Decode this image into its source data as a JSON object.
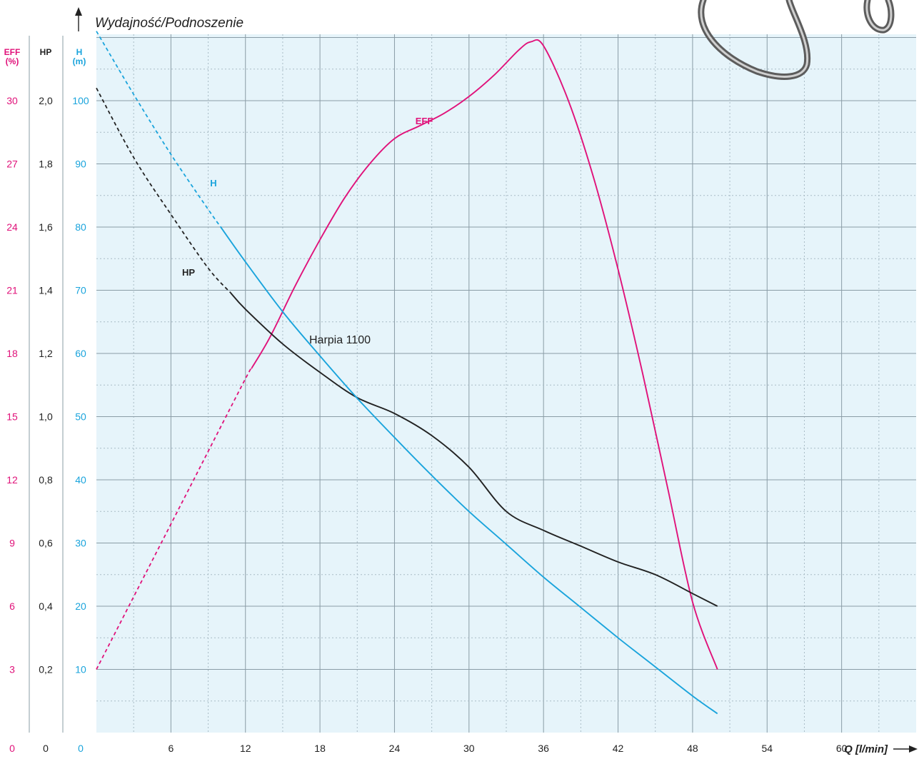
{
  "colors": {
    "plot_bg": "#e6f4fa",
    "grid_major": "#8a9ca6",
    "grid_minor": "#a9bcc6",
    "eff": "#e0127a",
    "hp": "#222222",
    "h": "#1aa4dc"
  },
  "chart_data": {
    "type": "line",
    "title": "Wydajność/Podnoszenie",
    "model": "Harpia 1100",
    "xlabel": "Q [l/min]",
    "x_range": [
      0,
      66
    ],
    "x_ticks": [
      {
        "v": 6,
        "label": "6"
      },
      {
        "v": 12,
        "label": "12"
      },
      {
        "v": 18,
        "label": "18"
      },
      {
        "v": 24,
        "label": "24"
      },
      {
        "v": 30,
        "label": "30"
      },
      {
        "v": 36,
        "label": "36"
      },
      {
        "v": 42,
        "label": "42"
      },
      {
        "v": 48,
        "label": "48"
      },
      {
        "v": 54,
        "label": "54"
      },
      {
        "v": 60,
        "label": "60"
      }
    ],
    "x_minor_step": 3,
    "axes": {
      "eff": {
        "header_line1": "EFF",
        "header_line2": "(%)",
        "range": [
          0,
          36
        ],
        "zero_label": "0",
        "ticks": [
          "3",
          "6",
          "9",
          "12",
          "15",
          "18",
          "21",
          "24",
          "27",
          "30"
        ]
      },
      "hp": {
        "header_line1": "HP",
        "range": [
          0,
          2.4
        ],
        "zero_label": "0",
        "ticks": [
          "0,2",
          "0,4",
          "0,6",
          "0,8",
          "1,0",
          "1,2",
          "1,4",
          "1,6",
          "1,8",
          "2,0"
        ]
      },
      "h": {
        "header_line1": "H",
        "header_line2": "(m)",
        "range": [
          0,
          120
        ],
        "zero_label": "0",
        "ticks": [
          "10",
          "20",
          "30",
          "40",
          "50",
          "60",
          "70",
          "80",
          "90",
          "100"
        ]
      }
    },
    "y_tick_values": [
      10,
      20,
      30,
      40,
      50,
      60,
      70,
      80,
      90,
      100
    ],
    "series": [
      {
        "name": "EFF",
        "axis": "eff",
        "dashed_until_x": 12.5,
        "points": [
          [
            0,
            3
          ],
          [
            4,
            7.6
          ],
          [
            8,
            12.2
          ],
          [
            12,
            16.8
          ],
          [
            14,
            18.8
          ],
          [
            16,
            21.2
          ],
          [
            18,
            23.4
          ],
          [
            20,
            25.4
          ],
          [
            22,
            27
          ],
          [
            24,
            28.2
          ],
          [
            26,
            28.8
          ],
          [
            28,
            29.4
          ],
          [
            30,
            30.2
          ],
          [
            32,
            31.2
          ],
          [
            34,
            32.4
          ],
          [
            35,
            32.8
          ],
          [
            36,
            32.6
          ],
          [
            38,
            30
          ],
          [
            40,
            26.4
          ],
          [
            42,
            22
          ],
          [
            44,
            17
          ],
          [
            46,
            11.6
          ],
          [
            48,
            6.2
          ],
          [
            50,
            3
          ]
        ]
      },
      {
        "name": "HP",
        "axis": "hp",
        "dashed_until_x": 10.8,
        "points": [
          [
            0,
            2.04
          ],
          [
            3,
            1.82
          ],
          [
            6,
            1.64
          ],
          [
            9,
            1.47
          ],
          [
            12,
            1.34
          ],
          [
            15,
            1.23
          ],
          [
            18,
            1.14
          ],
          [
            21,
            1.06
          ],
          [
            24,
            1.01
          ],
          [
            27,
            0.94
          ],
          [
            30,
            0.84
          ],
          [
            33,
            0.7
          ],
          [
            36,
            0.64
          ],
          [
            39,
            0.59
          ],
          [
            42,
            0.54
          ],
          [
            45,
            0.5
          ],
          [
            48,
            0.44
          ],
          [
            50,
            0.4
          ]
        ]
      },
      {
        "name": "H",
        "axis": "h",
        "dashed_until_x": 10,
        "points": [
          [
            0,
            111
          ],
          [
            3,
            101
          ],
          [
            6,
            91.5
          ],
          [
            9,
            82.8
          ],
          [
            12,
            74.5
          ],
          [
            15,
            66.6
          ],
          [
            18,
            59.6
          ],
          [
            21,
            52.9
          ],
          [
            24,
            46.7
          ],
          [
            27,
            40.7
          ],
          [
            30,
            35
          ],
          [
            33,
            29.8
          ],
          [
            36,
            24.6
          ],
          [
            39,
            19.8
          ],
          [
            42,
            15
          ],
          [
            45,
            10.4
          ],
          [
            48,
            5.8
          ],
          [
            50,
            3
          ]
        ]
      }
    ],
    "curve_labels": [
      {
        "series": "EFF",
        "text": "EFF"
      },
      {
        "series": "H",
        "text": "H"
      },
      {
        "series": "HP",
        "text": "HP"
      }
    ]
  }
}
